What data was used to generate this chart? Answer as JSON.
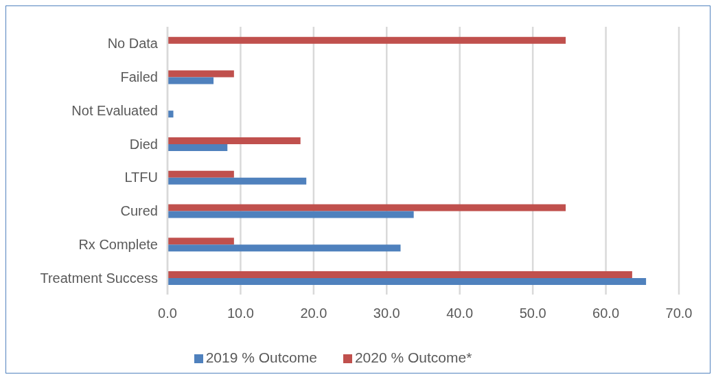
{
  "chart_data": {
    "type": "bar",
    "orientation": "horizontal",
    "categories": [
      "No Data",
      "Failed",
      "Not Evaluated",
      "Died",
      "LTFU",
      "Cured",
      "Rx Complete",
      "Treatment Success"
    ],
    "series": [
      {
        "name": "2020 % Outcome*",
        "color": "#c0504d",
        "values": [
          54.5,
          9.1,
          null,
          18.2,
          9.1,
          54.5,
          9.1,
          63.6
        ]
      },
      {
        "name": "2019 % Outcome",
        "color": "#4f81bd",
        "values": [
          null,
          6.3,
          0.8,
          8.2,
          19.0,
          33.7,
          31.9,
          65.5
        ]
      }
    ],
    "xlim": [
      0,
      70
    ],
    "xticks": [
      {
        "value": 0,
        "label": "0.0"
      },
      {
        "value": 10,
        "label": "10.0"
      },
      {
        "value": 20,
        "label": "20.0"
      },
      {
        "value": 30,
        "label": "30.0"
      },
      {
        "value": 40,
        "label": "40.0"
      },
      {
        "value": 50,
        "label": "50.0"
      },
      {
        "value": 60,
        "label": "60.0"
      },
      {
        "value": 70,
        "label": "70.0"
      }
    ],
    "grid": "x",
    "legend": "bottom"
  }
}
